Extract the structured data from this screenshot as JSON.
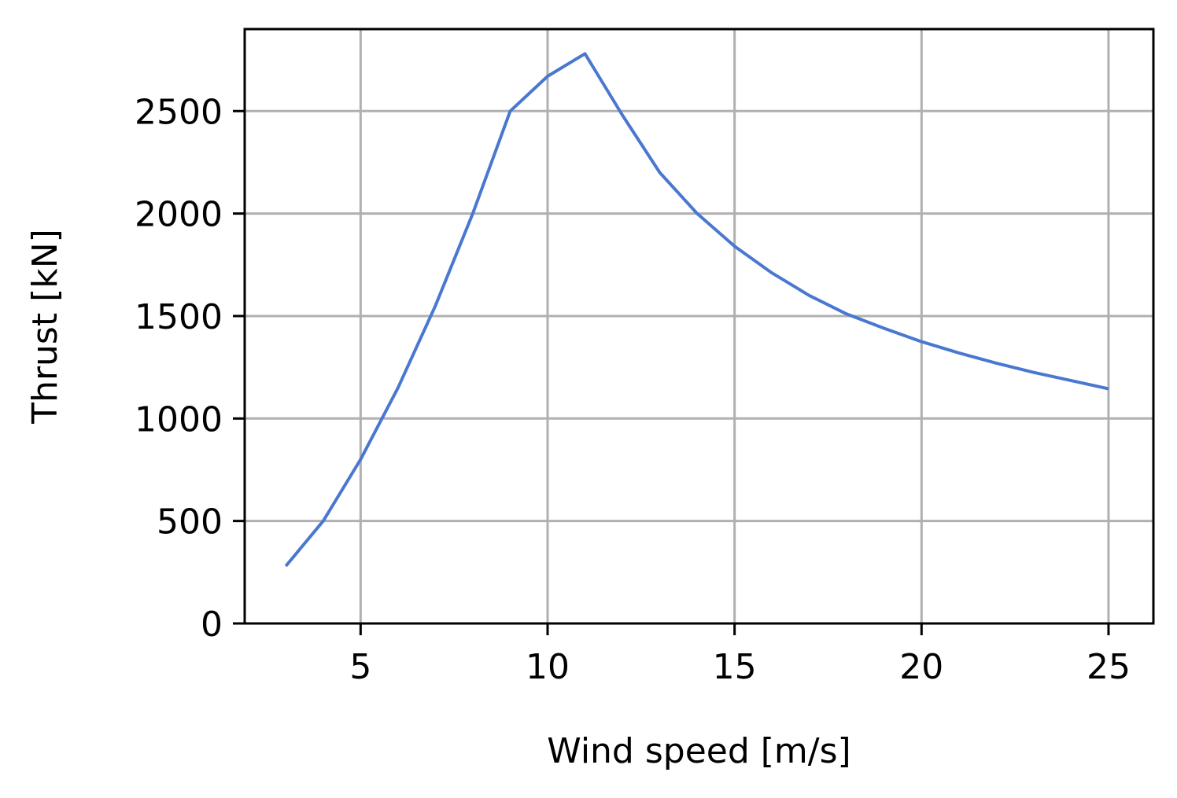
{
  "chart_data": {
    "type": "line",
    "xlabel": "Wind speed [m/s]",
    "ylabel": "Thrust [kN]",
    "xlim": [
      1.9,
      26.2
    ],
    "ylim": [
      0,
      2900
    ],
    "xticks": [
      5,
      10,
      15,
      20,
      25
    ],
    "yticks": [
      0,
      500,
      1000,
      1500,
      2000,
      2500
    ],
    "grid": true,
    "series": [
      {
        "color": "#4a78d0",
        "x": [
          3,
          4,
          5,
          6,
          7,
          8,
          9,
          10,
          11,
          12,
          13,
          14,
          15,
          16,
          17,
          18,
          19,
          20,
          21,
          22,
          23,
          24,
          25
        ],
        "y": [
          280,
          500,
          800,
          1150,
          1550,
          2000,
          2500,
          2670,
          2780,
          2480,
          2200,
          2000,
          1840,
          1710,
          1600,
          1510,
          1440,
          1375,
          1320,
          1270,
          1225,
          1185,
          1145
        ]
      }
    ]
  }
}
